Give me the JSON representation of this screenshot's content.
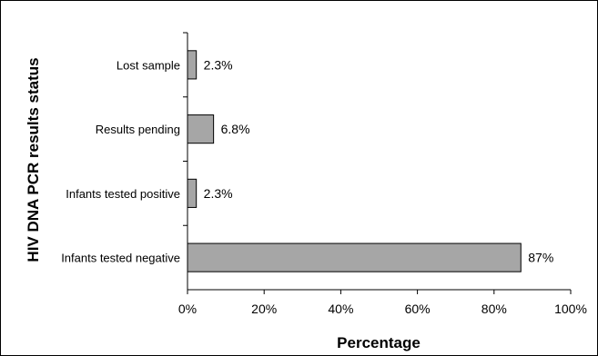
{
  "chart_data": {
    "type": "bar",
    "orientation": "horizontal",
    "categories": [
      "Lost sample",
      "Results pending",
      "Infants tested positive",
      "Infants tested negative"
    ],
    "values": [
      2.3,
      6.8,
      2.3,
      87
    ],
    "data_labels": [
      "2.3%",
      "6.8%",
      "2.3%",
      "87%"
    ],
    "xlabel": "Percentage",
    "ylabel": "HIV DNA PCR results status",
    "xlim": [
      0,
      100
    ],
    "x_ticks": [
      0,
      20,
      40,
      60,
      80,
      100
    ],
    "x_tick_labels": [
      "0%",
      "20%",
      "40%",
      "60%",
      "80%",
      "100%"
    ],
    "grid": false,
    "bar_color": "#a6a6a6",
    "bar_edge_color": "#000000"
  }
}
